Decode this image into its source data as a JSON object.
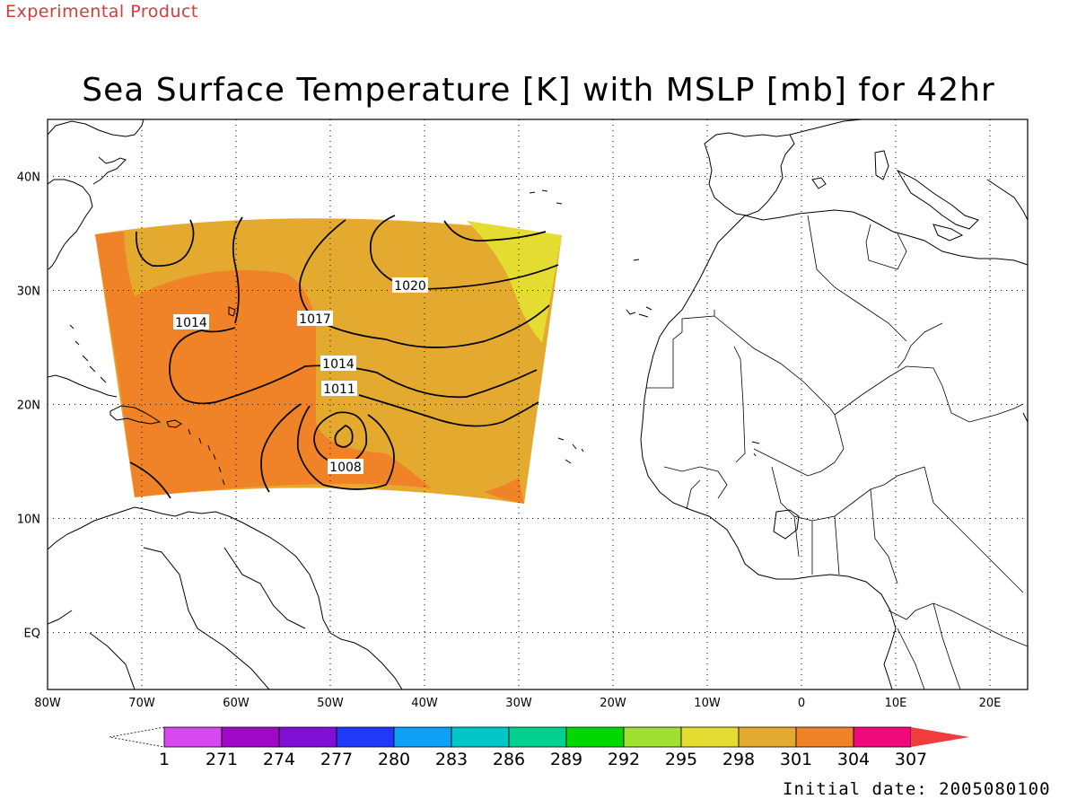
{
  "header": {
    "experimental": "Experimental Product"
  },
  "title": "Sea Surface Temperature [K] with MSLP [mb] for 42hr",
  "footer": {
    "initial_date": "Initial date: 2005080100"
  },
  "axes": {
    "lon_ticks": [
      -80,
      -70,
      -60,
      -50,
      -40,
      -30,
      -20,
      -10,
      0,
      10,
      20
    ],
    "lon_labels": [
      "80W",
      "70W",
      "60W",
      "50W",
      "40W",
      "30W",
      "20W",
      "10W",
      "0",
      "10E",
      "20E"
    ],
    "lat_ticks": [
      0,
      10,
      20,
      30,
      40
    ],
    "lat_labels": [
      "EQ",
      "10N",
      "20N",
      "30N",
      "40N"
    ],
    "lon_range": [
      -80,
      24
    ],
    "lat_range": [
      -5,
      45
    ],
    "grid": true
  },
  "colorbar": {
    "labels": [
      "1",
      "271",
      "274",
      "277",
      "280",
      "283",
      "286",
      "289",
      "292",
      "295",
      "298",
      "301",
      "304",
      "307"
    ],
    "colors": [
      "#d848f0",
      "#a008c8",
      "#8010d8",
      "#2038f8",
      "#0ca0f8",
      "#00c8c8",
      "#00d090",
      "#00d800",
      "#a0e030",
      "#e4dc30",
      "#e4aa30",
      "#f08228",
      "#f0087c"
    ],
    "under_color": "#ffffff",
    "over_color": "#f03c3c"
  },
  "fill_colors": {
    "sst_298": "#e4dc30",
    "sst_301": "#e4aa30",
    "sst_304": "#f08228"
  },
  "contour_labels": [
    "1020",
    "1017",
    "1014",
    "1014",
    "1011",
    "1008"
  ]
}
